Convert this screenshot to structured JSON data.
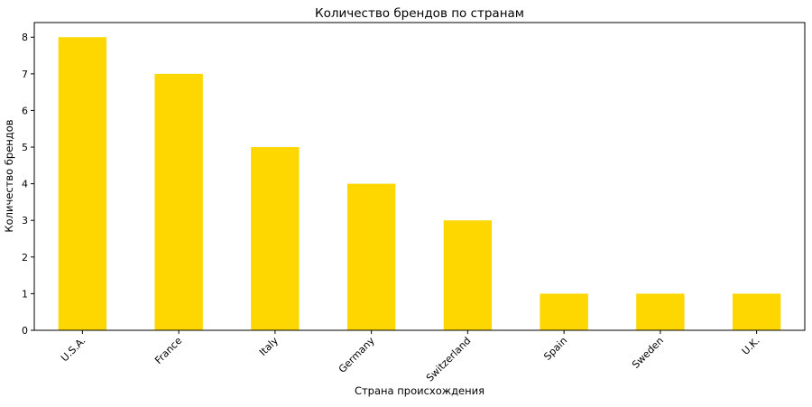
{
  "chart_data": {
    "type": "bar",
    "title": "Количество брендов по странам",
    "xlabel": "Страна происхождения",
    "ylabel": "Количество брендов",
    "categories": [
      "U.S.A.",
      "France",
      "Italy",
      "Germany",
      "Switzerland",
      "Spain",
      "Sweden",
      "U.K."
    ],
    "values": [
      8,
      7,
      5,
      4,
      3,
      1,
      1,
      1
    ],
    "ylim": [
      0,
      8.4
    ],
    "yticks": [
      0,
      1,
      2,
      3,
      4,
      5,
      6,
      7,
      8
    ],
    "bar_color": "#FFD700",
    "grid": false,
    "legend": "none",
    "xtick_rotation": 45
  }
}
